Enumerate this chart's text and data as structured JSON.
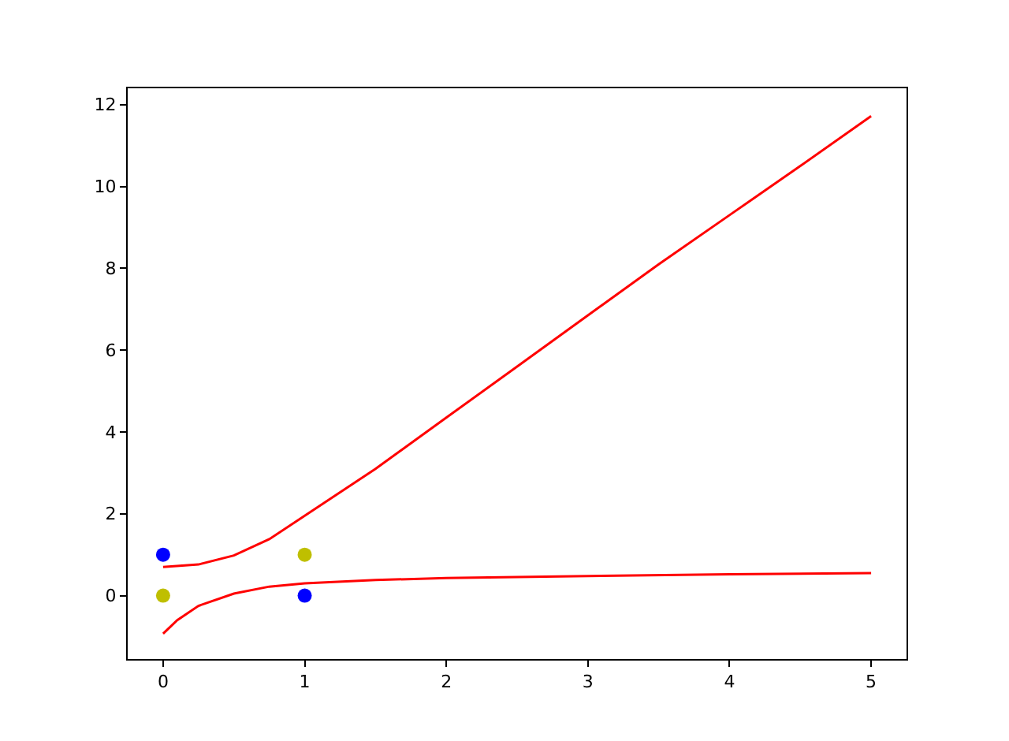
{
  "chart_data": {
    "type": "line",
    "xlim": [
      -0.25,
      5.25
    ],
    "ylim": [
      -1.55,
      12.4
    ],
    "xticks": [
      0,
      1,
      2,
      3,
      4,
      5
    ],
    "yticks": [
      0,
      2,
      4,
      6,
      8,
      10,
      12
    ],
    "series": [
      {
        "color": "#ff0000",
        "marker": "none",
        "line_style": "solid",
        "x": [
          0,
          0.25,
          0.5,
          0.75,
          1,
          1.5,
          2,
          2.5,
          3,
          3.5,
          4,
          4.5,
          5
        ],
        "values": [
          0.7,
          0.76,
          0.98,
          1.38,
          1.95,
          3.1,
          4.35,
          5.6,
          6.85,
          8.1,
          9.3,
          10.5,
          11.72
        ]
      },
      {
        "color": "#ff0000",
        "marker": "none",
        "line_style": "solid",
        "x": [
          0,
          0.1,
          0.25,
          0.5,
          0.75,
          1,
          1.5,
          2,
          3,
          4,
          5
        ],
        "values": [
          -0.93,
          -0.6,
          -0.25,
          0.05,
          0.22,
          0.3,
          0.38,
          0.43,
          0.48,
          0.52,
          0.55
        ]
      },
      {
        "type": "scatter",
        "color": "#0000ff",
        "marker": "circle",
        "x": [
          0,
          1
        ],
        "values": [
          1,
          0
        ]
      },
      {
        "type": "scatter",
        "color": "#bfbf00",
        "marker": "circle",
        "x": [
          0,
          1
        ],
        "values": [
          0,
          1
        ]
      }
    ]
  }
}
